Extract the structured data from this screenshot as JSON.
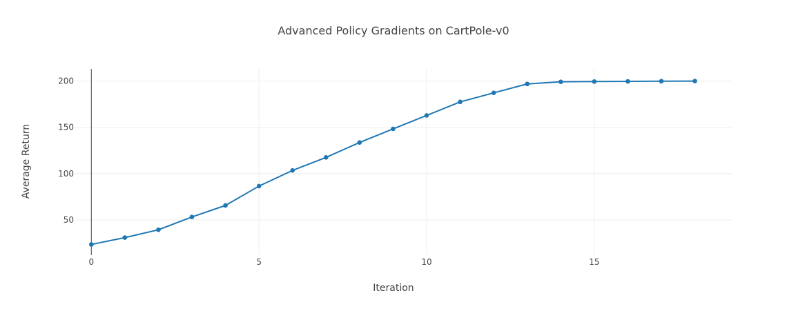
{
  "chart_data": {
    "type": "line",
    "title": "Advanced Policy Gradients on CartPole-v0",
    "xlabel": "Iteration",
    "ylabel": "Average Return",
    "xlim": [
      -0.5,
      19.1
    ],
    "ylim": [
      12,
      213
    ],
    "xticks": [
      0,
      5,
      10,
      15
    ],
    "yticks": [
      50,
      100,
      150,
      200
    ],
    "grid": true,
    "legend": "none",
    "series": [
      {
        "color": "#1f77b4",
        "x": [
          0,
          1,
          2,
          3,
          4,
          5,
          6,
          7,
          8,
          9,
          10,
          11,
          12,
          13,
          14,
          15,
          16,
          17,
          18
        ],
        "y": [
          23.5,
          30.9,
          39.3,
          53.2,
          65.6,
          86.5,
          103.4,
          117.5,
          133.6,
          148.3,
          162.8,
          177.4,
          187.2,
          196.8,
          199.1,
          199.4,
          199.6,
          199.8,
          199.9
        ]
      }
    ]
  }
}
